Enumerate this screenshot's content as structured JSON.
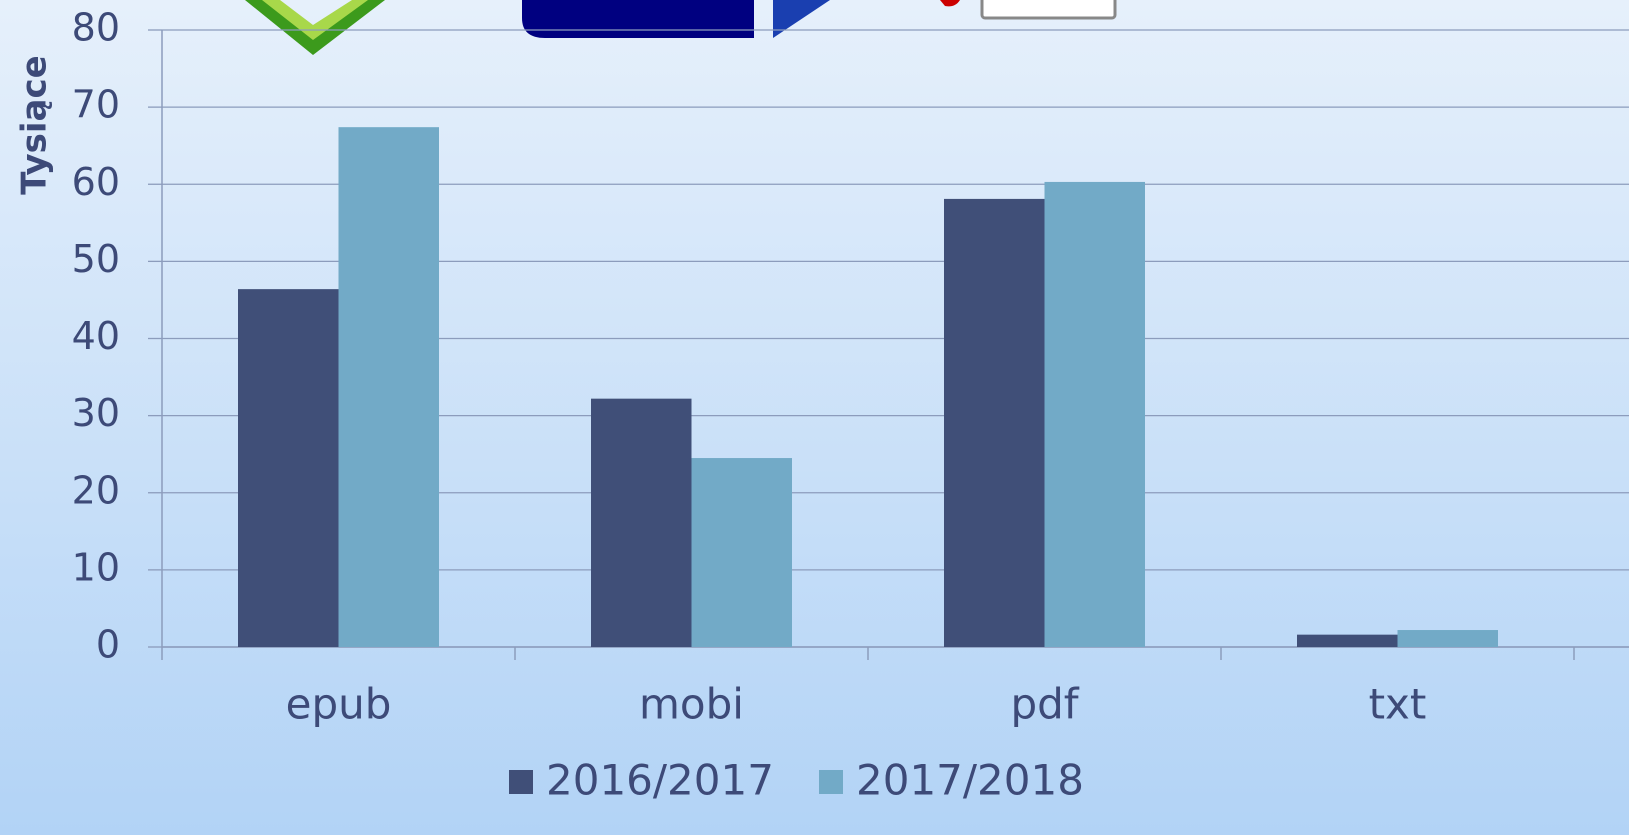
{
  "chart_data": {
    "type": "bar",
    "ylabel": "Tysiące",
    "categories": [
      "epub",
      "mobi",
      "pdf",
      "txt"
    ],
    "series": [
      {
        "name": "2016/2017",
        "color": "#404f78",
        "values": [
          46.4,
          32.2,
          58.1,
          1.6
        ]
      },
      {
        "name": "2017/2018",
        "color": "#72aac7",
        "values": [
          67.4,
          24.5,
          60.3,
          2.2
        ]
      }
    ],
    "ylim": [
      0,
      80
    ],
    "yticks": [
      0,
      10,
      20,
      30,
      40,
      50,
      60,
      70,
      80
    ],
    "grid": true,
    "legend": "bottom"
  }
}
